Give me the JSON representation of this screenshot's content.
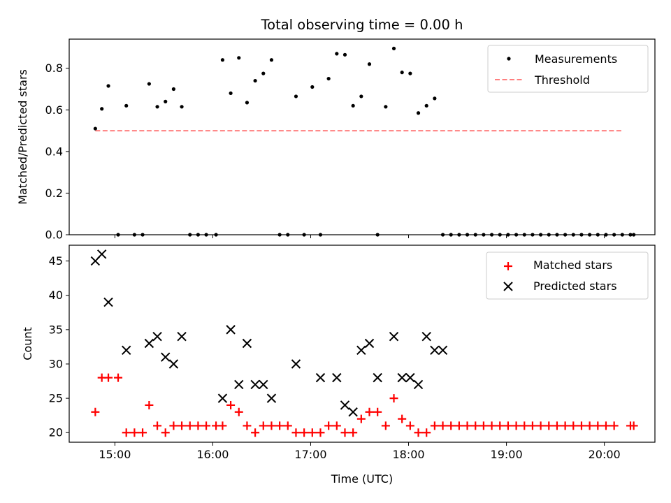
{
  "title": "Total observing time = 0.00 h",
  "colors": {
    "measurement": "#000000",
    "threshold": "#ff7f7f",
    "matched": "#ff0000",
    "predicted": "#000000"
  },
  "chart_data": [
    {
      "type": "scatter",
      "ylabel": "Matched/Predicted stars",
      "xlabel": "",
      "xlim": [
        "14:32",
        "20:31"
      ],
      "ylim": [
        0,
        0.94
      ],
      "grid": false,
      "legend_position": "top-right",
      "legend": [
        "Measurements",
        "Threshold"
      ],
      "yticks": [
        "0.0",
        "0.2",
        "0.4",
        "0.6",
        "0.8"
      ],
      "threshold": {
        "name": "Threshold",
        "value": 0.5,
        "x_start": "14:48",
        "x_end": "20:11"
      },
      "series": [
        {
          "name": "Measurements",
          "marker": "dot",
          "points": [
            [
              "14:48",
              0.51
            ],
            [
              "14:52",
              0.605
            ],
            [
              "14:56",
              0.715
            ],
            [
              "15:02",
              0.0
            ],
            [
              "15:07",
              0.62
            ],
            [
              "15:12",
              0.0
            ],
            [
              "15:17",
              0.0
            ],
            [
              "15:21",
              0.725
            ],
            [
              "15:26",
              0.615
            ],
            [
              "15:31",
              0.64
            ],
            [
              "15:36",
              0.7
            ],
            [
              "15:41",
              0.615
            ],
            [
              "15:46",
              0.0
            ],
            [
              "15:51",
              0.0
            ],
            [
              "15:56",
              0.0
            ],
            [
              "16:02",
              0.0
            ],
            [
              "16:06",
              0.84
            ],
            [
              "16:11",
              0.68
            ],
            [
              "16:16",
              0.85
            ],
            [
              "16:21",
              0.635
            ],
            [
              "16:26",
              0.74
            ],
            [
              "16:31",
              0.775
            ],
            [
              "16:36",
              0.84
            ],
            [
              "16:41",
              0.0
            ],
            [
              "16:46",
              0.0
            ],
            [
              "16:51",
              0.665
            ],
            [
              "16:56",
              0.0
            ],
            [
              "17:01",
              0.71
            ],
            [
              "17:06",
              0.0
            ],
            [
              "17:11",
              0.75
            ],
            [
              "17:16",
              0.87
            ],
            [
              "17:21",
              0.865
            ],
            [
              "17:26",
              0.62
            ],
            [
              "17:31",
              0.665
            ],
            [
              "17:36",
              0.82
            ],
            [
              "17:41",
              0.0
            ],
            [
              "17:46",
              0.615
            ],
            [
              "17:51",
              0.895
            ],
            [
              "17:56",
              0.78
            ],
            [
              "18:01",
              0.775
            ],
            [
              "18:06",
              0.585
            ],
            [
              "18:11",
              0.62
            ],
            [
              "18:16",
              0.655
            ],
            [
              "18:21",
              0.0
            ],
            [
              "18:26",
              0.0
            ],
            [
              "18:31",
              0.0
            ],
            [
              "18:36",
              0.0
            ],
            [
              "18:41",
              0.0
            ],
            [
              "18:46",
              0.0
            ],
            [
              "18:51",
              0.0
            ],
            [
              "18:56",
              0.0
            ],
            [
              "19:01",
              0.0
            ],
            [
              "19:06",
              0.0
            ],
            [
              "19:11",
              0.0
            ],
            [
              "19:16",
              0.0
            ],
            [
              "19:21",
              0.0
            ],
            [
              "19:26",
              0.0
            ],
            [
              "19:31",
              0.0
            ],
            [
              "19:36",
              0.0
            ],
            [
              "19:41",
              0.0
            ],
            [
              "19:46",
              0.0
            ],
            [
              "19:51",
              0.0
            ],
            [
              "19:56",
              0.0
            ],
            [
              "20:01",
              0.0
            ],
            [
              "20:06",
              0.0
            ],
            [
              "20:11",
              0.0
            ],
            [
              "20:16",
              0.0
            ],
            [
              "20:18",
              0.0
            ]
          ]
        }
      ]
    },
    {
      "type": "scatter",
      "ylabel": "Count",
      "xlabel": "Time (UTC)",
      "xlim": [
        "14:32",
        "20:31"
      ],
      "ylim": [
        18.6,
        47.3
      ],
      "grid": false,
      "legend_position": "top-right",
      "legend": [
        "Matched stars",
        "Predicted stars"
      ],
      "xticks": [
        "15:00",
        "16:00",
        "17:00",
        "18:00",
        "19:00",
        "20:00"
      ],
      "yticks": [
        "20",
        "25",
        "30",
        "35",
        "40",
        "45"
      ],
      "series": [
        {
          "name": "Matched stars",
          "marker": "plus",
          "points": [
            [
              "14:48",
              23
            ],
            [
              "14:52",
              28
            ],
            [
              "14:56",
              28
            ],
            [
              "15:02",
              28
            ],
            [
              "15:07",
              20
            ],
            [
              "15:12",
              20
            ],
            [
              "15:17",
              20
            ],
            [
              "15:21",
              24
            ],
            [
              "15:26",
              21
            ],
            [
              "15:31",
              20
            ],
            [
              "15:36",
              21
            ],
            [
              "15:41",
              21
            ],
            [
              "15:46",
              21
            ],
            [
              "15:51",
              21
            ],
            [
              "15:56",
              21
            ],
            [
              "16:02",
              21
            ],
            [
              "16:06",
              21
            ],
            [
              "16:11",
              24
            ],
            [
              "16:16",
              23
            ],
            [
              "16:21",
              21
            ],
            [
              "16:26",
              20
            ],
            [
              "16:31",
              21
            ],
            [
              "16:36",
              21
            ],
            [
              "16:41",
              21
            ],
            [
              "16:46",
              21
            ],
            [
              "16:51",
              20
            ],
            [
              "16:56",
              20
            ],
            [
              "17:01",
              20
            ],
            [
              "17:06",
              20
            ],
            [
              "17:11",
              21
            ],
            [
              "17:16",
              21
            ],
            [
              "17:21",
              20
            ],
            [
              "17:26",
              20
            ],
            [
              "17:31",
              22
            ],
            [
              "17:36",
              23
            ],
            [
              "17:41",
              23
            ],
            [
              "17:46",
              21
            ],
            [
              "17:51",
              25
            ],
            [
              "17:56",
              22
            ],
            [
              "18:01",
              21
            ],
            [
              "18:06",
              20
            ],
            [
              "18:11",
              20
            ],
            [
              "18:16",
              21
            ],
            [
              "18:21",
              21
            ],
            [
              "18:26",
              21
            ],
            [
              "18:31",
              21
            ],
            [
              "18:36",
              21
            ],
            [
              "18:41",
              21
            ],
            [
              "18:46",
              21
            ],
            [
              "18:51",
              21
            ],
            [
              "18:56",
              21
            ],
            [
              "19:01",
              21
            ],
            [
              "19:06",
              21
            ],
            [
              "19:11",
              21
            ],
            [
              "19:16",
              21
            ],
            [
              "19:21",
              21
            ],
            [
              "19:26",
              21
            ],
            [
              "19:31",
              21
            ],
            [
              "19:36",
              21
            ],
            [
              "19:41",
              21
            ],
            [
              "19:46",
              21
            ],
            [
              "19:51",
              21
            ],
            [
              "19:56",
              21
            ],
            [
              "20:01",
              21
            ],
            [
              "20:06",
              21
            ],
            [
              "20:16",
              21
            ],
            [
              "20:18",
              21
            ]
          ]
        },
        {
          "name": "Predicted stars",
          "marker": "x",
          "points": [
            [
              "14:48",
              45
            ],
            [
              "14:52",
              46
            ],
            [
              "14:56",
              39
            ],
            [
              "15:07",
              32
            ],
            [
              "15:21",
              33
            ],
            [
              "15:26",
              34
            ],
            [
              "15:31",
              31
            ],
            [
              "15:36",
              30
            ],
            [
              "15:41",
              34
            ],
            [
              "16:06",
              25
            ],
            [
              "16:11",
              35
            ],
            [
              "16:16",
              27
            ],
            [
              "16:21",
              33
            ],
            [
              "16:26",
              27
            ],
            [
              "16:31",
              27
            ],
            [
              "16:36",
              25
            ],
            [
              "16:51",
              30
            ],
            [
              "17:06",
              28
            ],
            [
              "17:16",
              28
            ],
            [
              "17:21",
              24
            ],
            [
              "17:26",
              23
            ],
            [
              "17:31",
              32
            ],
            [
              "17:36",
              33
            ],
            [
              "17:41",
              28
            ],
            [
              "17:51",
              34
            ],
            [
              "17:56",
              28
            ],
            [
              "18:01",
              28
            ],
            [
              "18:06",
              27
            ],
            [
              "18:11",
              34
            ],
            [
              "18:16",
              32
            ],
            [
              "18:21",
              32
            ]
          ]
        }
      ]
    }
  ]
}
